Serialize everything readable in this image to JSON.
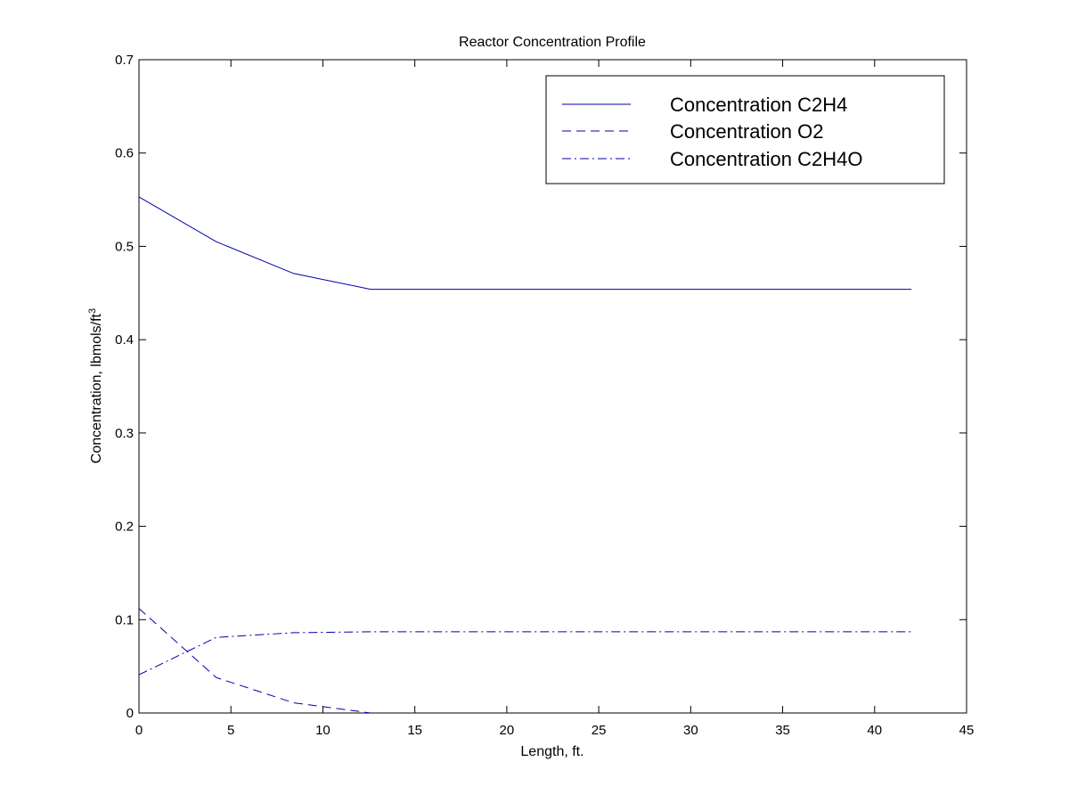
{
  "chart_data": {
    "type": "line",
    "title": "Reactor Concentration Profile",
    "xlabel": "Length, ft.",
    "ylabel": "Concentration, lbmols/ft",
    "ylabel_superscript": "3",
    "xlim": [
      0,
      45
    ],
    "ylim": [
      0,
      0.7
    ],
    "xticks": [
      0,
      5,
      10,
      15,
      20,
      25,
      30,
      35,
      40,
      45
    ],
    "yticks": [
      0,
      0.1,
      0.2,
      0.3,
      0.4,
      0.5,
      0.6,
      0.7
    ],
    "ytick_labels": [
      "0",
      "0.1",
      "0.2",
      "0.3",
      "0.4",
      "0.5",
      "0.6",
      "0.7"
    ],
    "grid": false,
    "legend_position": "top-right",
    "series": [
      {
        "name": "Concentration C2H4",
        "style": "solid",
        "color": "#0000aa",
        "x": [
          0,
          4.2,
          8.4,
          12.6,
          42
        ],
        "y": [
          0.553,
          0.505,
          0.471,
          0.454,
          0.454
        ]
      },
      {
        "name": "Concentration O2",
        "style": "dashed",
        "color": "#0000aa",
        "x": [
          0,
          4.2,
          8.4,
          12.6
        ],
        "y": [
          0.112,
          0.038,
          0.011,
          0.0
        ]
      },
      {
        "name": "Concentration C2H4O",
        "style": "dashdot",
        "color": "#0000aa",
        "x": [
          0,
          4.2,
          8.4,
          12.6,
          42
        ],
        "y": [
          0.041,
          0.081,
          0.086,
          0.087,
          0.087
        ]
      }
    ]
  }
}
